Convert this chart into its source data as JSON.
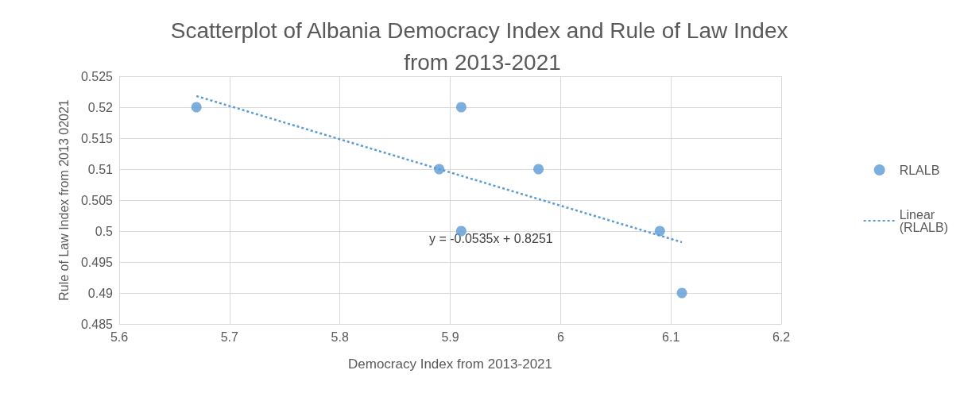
{
  "chart_data": {
    "type": "scatter",
    "title": "Scatterplot of Albania Democracy Index and Rule of Law Index from 2013-2021",
    "xlabel": "Democracy Index from 2013-2021",
    "ylabel": "Rule of Law Index from 2013 02021",
    "series": [
      {
        "name": "RLALB",
        "color": "#5b9bd5",
        "x": [
          5.67,
          5.91,
          5.89,
          5.98,
          5.91,
          6.09,
          6.11
        ],
        "values": [
          0.52,
          0.52,
          0.51,
          0.51,
          0.5,
          0.5,
          0.49
        ],
        "marker": "circle"
      },
      {
        "name": "Linear (RLALB)",
        "type": "line",
        "color": "#5b9bd5",
        "x": [
          5.67,
          6.11
        ],
        "values": [
          0.5218,
          0.4982
        ],
        "marker": "none",
        "line_style": "dotted"
      }
    ],
    "annotations": [
      "y = -0.0535x + 0.8251"
    ],
    "xlim": [
      5.6,
      6.2
    ],
    "xticks": [
      5.6,
      5.7,
      5.8,
      5.9,
      6,
      6.1,
      6.2
    ],
    "ylim": [
      0.485,
      0.525
    ],
    "yticks": [
      0.485,
      0.49,
      0.495,
      0.5,
      0.505,
      0.51,
      0.515,
      0.52,
      0.525
    ],
    "grid": true,
    "legend": "right"
  }
}
